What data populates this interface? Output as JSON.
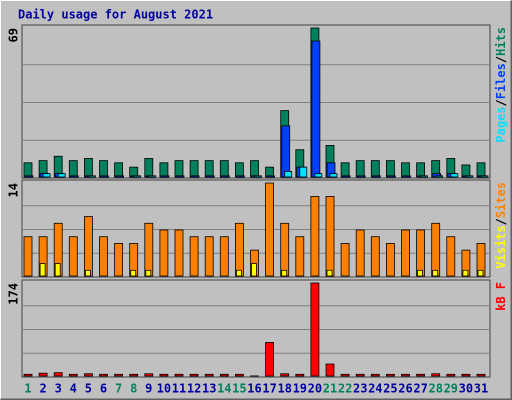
{
  "chart_data": [
    {
      "type": "bar",
      "title": "Daily usage for August 2021",
      "ylim": [
        0,
        69
      ],
      "yticks": [
        69
      ],
      "legend_separator": "/",
      "series": [
        {
          "name": "Hits",
          "color": "#00805c",
          "values": [
            7,
            8,
            10,
            8,
            9,
            8,
            7,
            5,
            9,
            7,
            8,
            8,
            8,
            8,
            7,
            8,
            5,
            31,
            13,
            69,
            15,
            7,
            8,
            8,
            8,
            7,
            7,
            8,
            9,
            6,
            7
          ]
        },
        {
          "name": "Files",
          "color": "#0040ff",
          "values": [
            1,
            2,
            2,
            1,
            1,
            1,
            1,
            1,
            1,
            1,
            1,
            1,
            1,
            1,
            1,
            1,
            1,
            24,
            5,
            63,
            7,
            1,
            1,
            1,
            1,
            1,
            1,
            2,
            2,
            1,
            1
          ]
        },
        {
          "name": "Pages",
          "color": "#00e0ff",
          "values": [
            0,
            2,
            2,
            0,
            1,
            0,
            0,
            1,
            1,
            0,
            0,
            0,
            0,
            0,
            0,
            1,
            0,
            3,
            5,
            2,
            2,
            0,
            0,
            0,
            0,
            0,
            1,
            1,
            2,
            1,
            1
          ]
        }
      ]
    },
    {
      "type": "bar",
      "ylim": [
        0,
        14
      ],
      "yticks": [
        14
      ],
      "legend_separator": "/",
      "series": [
        {
          "name": "Sites",
          "color": "#ff8000",
          "values": [
            6,
            6,
            8,
            6,
            9,
            6,
            5,
            5,
            8,
            7,
            7,
            6,
            6,
            6,
            8,
            4,
            14,
            8,
            6,
            12,
            12,
            5,
            7,
            6,
            5,
            7,
            7,
            8,
            6,
            4,
            5
          ]
        },
        {
          "name": "Visits",
          "color": "#ffff00",
          "values": [
            0,
            2,
            2,
            0,
            1,
            0,
            0,
            1,
            1,
            0,
            0,
            0,
            0,
            0,
            1,
            2,
            0,
            1,
            0,
            0,
            1,
            0,
            0,
            0,
            0,
            0,
            1,
            1,
            0,
            1,
            1
          ]
        }
      ]
    },
    {
      "type": "bar",
      "ylim": [
        0,
        174
      ],
      "yticks": [
        174
      ],
      "categories": [
        "1",
        "2",
        "3",
        "4",
        "5",
        "6",
        "7",
        "8",
        "9",
        "10",
        "11",
        "12",
        "13",
        "14",
        "15",
        "16",
        "17",
        "18",
        "19",
        "20",
        "21",
        "22",
        "23",
        "24",
        "25",
        "26",
        "27",
        "28",
        "29",
        "30",
        "31"
      ],
      "category_colors": [
        "#00805c",
        "#0000a0",
        "#0000a0",
        "#0000a0",
        "#0000a0",
        "#0000a0",
        "#00805c",
        "#00805c",
        "#0000a0",
        "#0000a0",
        "#0000a0",
        "#0000a0",
        "#0000a0",
        "#00805c",
        "#00805c",
        "#0000a0",
        "#0000a0",
        "#0000a0",
        "#0000a0",
        "#0000a0",
        "#00805c",
        "#00805c",
        "#0000a0",
        "#0000a0",
        "#0000a0",
        "#0000a0",
        "#0000a0",
        "#00805c",
        "#00805c",
        "#0000a0",
        "#0000a0"
      ],
      "series": [
        {
          "name": "kB F",
          "color": "#ff0000",
          "values": [
            5,
            7,
            8,
            5,
            6,
            5,
            5,
            5,
            6,
            5,
            5,
            5,
            5,
            5,
            5,
            2,
            64,
            6,
            5,
            174,
            24,
            5,
            5,
            5,
            5,
            5,
            5,
            6,
            5,
            5,
            5
          ]
        }
      ]
    }
  ]
}
